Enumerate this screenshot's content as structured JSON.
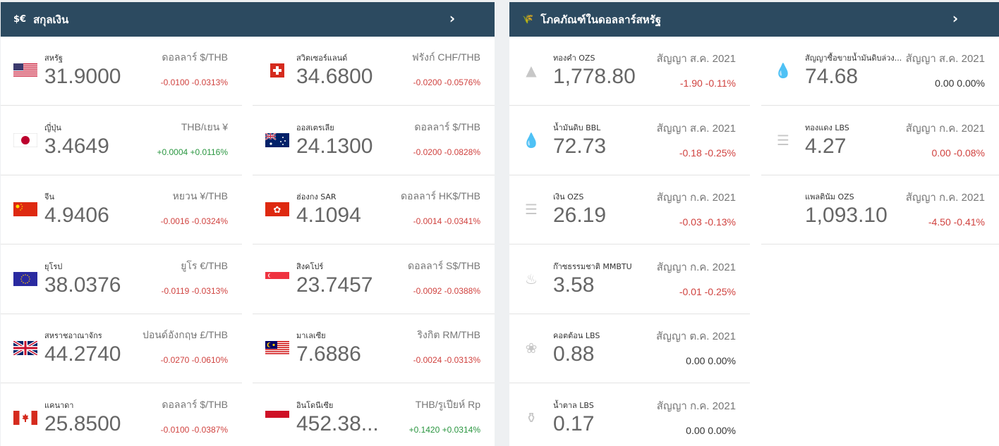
{
  "currency_panel": {
    "icon": "$€",
    "title": "สกุลเงิน",
    "items": [
      {
        "name": "สหรัฐ",
        "value": "31.9000",
        "unit": "ดอลลาร์ $/THB",
        "change": "-0.0100 -0.0313%",
        "flag": "us-flag-icon",
        "trend": "neg"
      },
      {
        "name": "สวิตเซอร์แลนด์",
        "value": "34.6800",
        "unit": "ฟรังก์ CHF/THB",
        "change": "-0.0200 -0.0576%",
        "flag": "ch-flag-icon",
        "trend": "neg"
      },
      {
        "name": "ญี่ปุ่น",
        "value": "3.4649",
        "unit": "THB/เยน ¥",
        "change": "+0.0004 +0.0116%",
        "flag": "jp-flag-icon",
        "trend": "pos"
      },
      {
        "name": "ออสเตรเลีย",
        "value": "24.1300",
        "unit": "ดอลลาร์ $/THB",
        "change": "-0.0200 -0.0828%",
        "flag": "au-flag-icon",
        "trend": "neg"
      },
      {
        "name": "จีน",
        "value": "4.9406",
        "unit": "หยวน ¥/THB",
        "change": "-0.0016 -0.0324%",
        "flag": "cn-flag-icon",
        "trend": "neg"
      },
      {
        "name": "ฮ่องกง SAR",
        "value": "4.1094",
        "unit": "ดอลลาร์ HK$/THB",
        "change": "-0.0014 -0.0341%",
        "flag": "hk-flag-icon",
        "trend": "neg"
      },
      {
        "name": "ยุโรป",
        "value": "38.0376",
        "unit": "ยูโร €/THB",
        "change": "-0.0119 -0.0313%",
        "flag": "eu-flag-icon",
        "trend": "neg"
      },
      {
        "name": "สิงคโปร์",
        "value": "23.7457",
        "unit": "ดอลลาร์ S$/THB",
        "change": "-0.0092 -0.0388%",
        "flag": "sg-flag-icon",
        "trend": "neg"
      },
      {
        "name": "สหราชอาณาจักร",
        "value": "44.2740",
        "unit": "ปอนด์อังกฤษ £/THB",
        "change": "-0.0270 -0.0610%",
        "flag": "gb-flag-icon",
        "trend": "neg"
      },
      {
        "name": "มาเลเซีย",
        "value": "7.6886",
        "unit": "ริงกิต RM/THB",
        "change": "-0.0024 -0.0313%",
        "flag": "my-flag-icon",
        "trend": "neg"
      },
      {
        "name": "แคนาดา",
        "value": "25.8500",
        "unit": "ดอลลาร์ $/THB",
        "change": "-0.0100 -0.0387%",
        "flag": "ca-flag-icon",
        "trend": "neg"
      },
      {
        "name": "อินโดนีเซีย",
        "value": "452.38...",
        "unit": "THB/รูเปียห์ Rp",
        "change": "+0.1420 +0.0314%",
        "flag": "id-flag-icon",
        "trend": "pos"
      }
    ]
  },
  "commodity_panel": {
    "icon": "🌾",
    "title": "โภคภัณฑ์ในดอลลาร์สหรัฐ",
    "left_items": [
      {
        "name": "ทองคำ OZS",
        "value": "1,778.80",
        "unit": "สัญญา ส.ค. 2021",
        "change": "-1.90 -0.11%",
        "icon": "gold-bars-icon",
        "glyph": "▲",
        "trend": "neg"
      },
      {
        "name": "น้ำมันดิบ BBL",
        "value": "72.73",
        "unit": "สัญญา ส.ค. 2021",
        "change": "-0.18 -0.25%",
        "icon": "oil-drop-icon",
        "glyph": "💧",
        "trend": "neg"
      },
      {
        "name": "เงิน OZS",
        "value": "26.19",
        "unit": "สัญญา ก.ค. 2021",
        "change": "-0.03 -0.13%",
        "icon": "coins-stack-icon",
        "glyph": "☰",
        "trend": "neg"
      },
      {
        "name": "ก๊าซธรรมชาติ MMBTU",
        "value": "3.58",
        "unit": "สัญญา ก.ค. 2021",
        "change": "-0.01 -0.25%",
        "icon": "flame-icon",
        "glyph": "♨",
        "trend": "neg"
      },
      {
        "name": "คอตต้อน LBS",
        "value": "0.88",
        "unit": "สัญญา ต.ค. 2021",
        "change": "0.00 0.00%",
        "icon": "cotton-icon",
        "glyph": "❀",
        "trend": "neu"
      },
      {
        "name": "น้ำตาล LBS",
        "value": "0.17",
        "unit": "สัญญา ก.ค. 2021",
        "change": "0.00 0.00%",
        "icon": "sugar-icon",
        "glyph": "⚱",
        "trend": "neu"
      }
    ],
    "right_items": [
      {
        "name": "สัญญาซื้อขายน้ำมันดิบล่วง...",
        "value": "74.68",
        "unit": "สัญญา ส.ค. 2021",
        "change": "0.00 0.00%",
        "icon": "oil-drop-icon",
        "glyph": "💧",
        "trend": "neu"
      },
      {
        "name": "ทองแดง LBS",
        "value": "4.27",
        "unit": "สัญญา ก.ค. 2021",
        "change": "0.00 -0.08%",
        "icon": "coins-stack-icon",
        "glyph": "☰",
        "trend": "neg"
      },
      {
        "name": "แพลตินัม OZS",
        "value": "1,093.10",
        "unit": "สัญญา ก.ค. 2021",
        "change": "-4.50 -0.41%",
        "icon": "none",
        "glyph": "",
        "trend": "neg"
      }
    ]
  },
  "colors": {
    "header_bg": "#2c4a60",
    "negative": "#d0423f",
    "positive": "#2a9640"
  }
}
